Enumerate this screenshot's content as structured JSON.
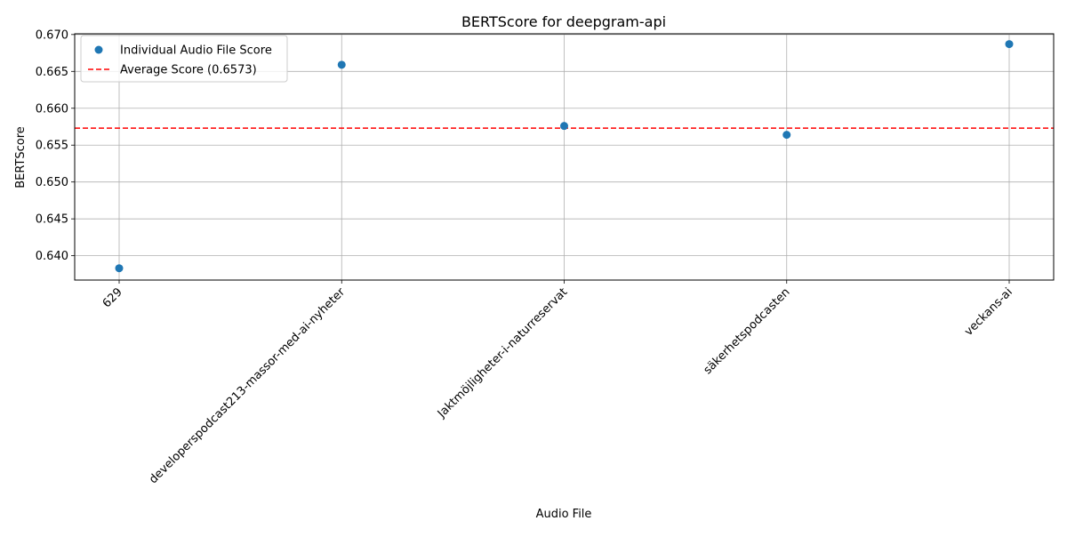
{
  "chart_data": {
    "type": "scatter",
    "title": "BERTScore for deepgram-api",
    "xlabel": "Audio File",
    "ylabel": "BERTScore",
    "categories": [
      "629",
      "developerspodcast213-massor-med-ai-nyheter",
      "Jaktmöjligheter-i-naturreservat",
      "säkerhetspodcasten",
      "veckans-ai"
    ],
    "series": [
      {
        "name": "Individual Audio File Score",
        "values": [
          0.6383,
          0.6659,
          0.6576,
          0.6564,
          0.6687
        ],
        "color": "#1f77b4"
      }
    ],
    "average": {
      "label": "Average Score (0.6573)",
      "value": 0.6573,
      "color": "#ff0000",
      "style": "dashed"
    },
    "ylim": [
      0.6367,
      0.6701
    ],
    "yticks": [
      "0.640",
      "0.645",
      "0.650",
      "0.655",
      "0.660",
      "0.665",
      "0.670"
    ],
    "grid": true,
    "legend_position": "top-left"
  }
}
